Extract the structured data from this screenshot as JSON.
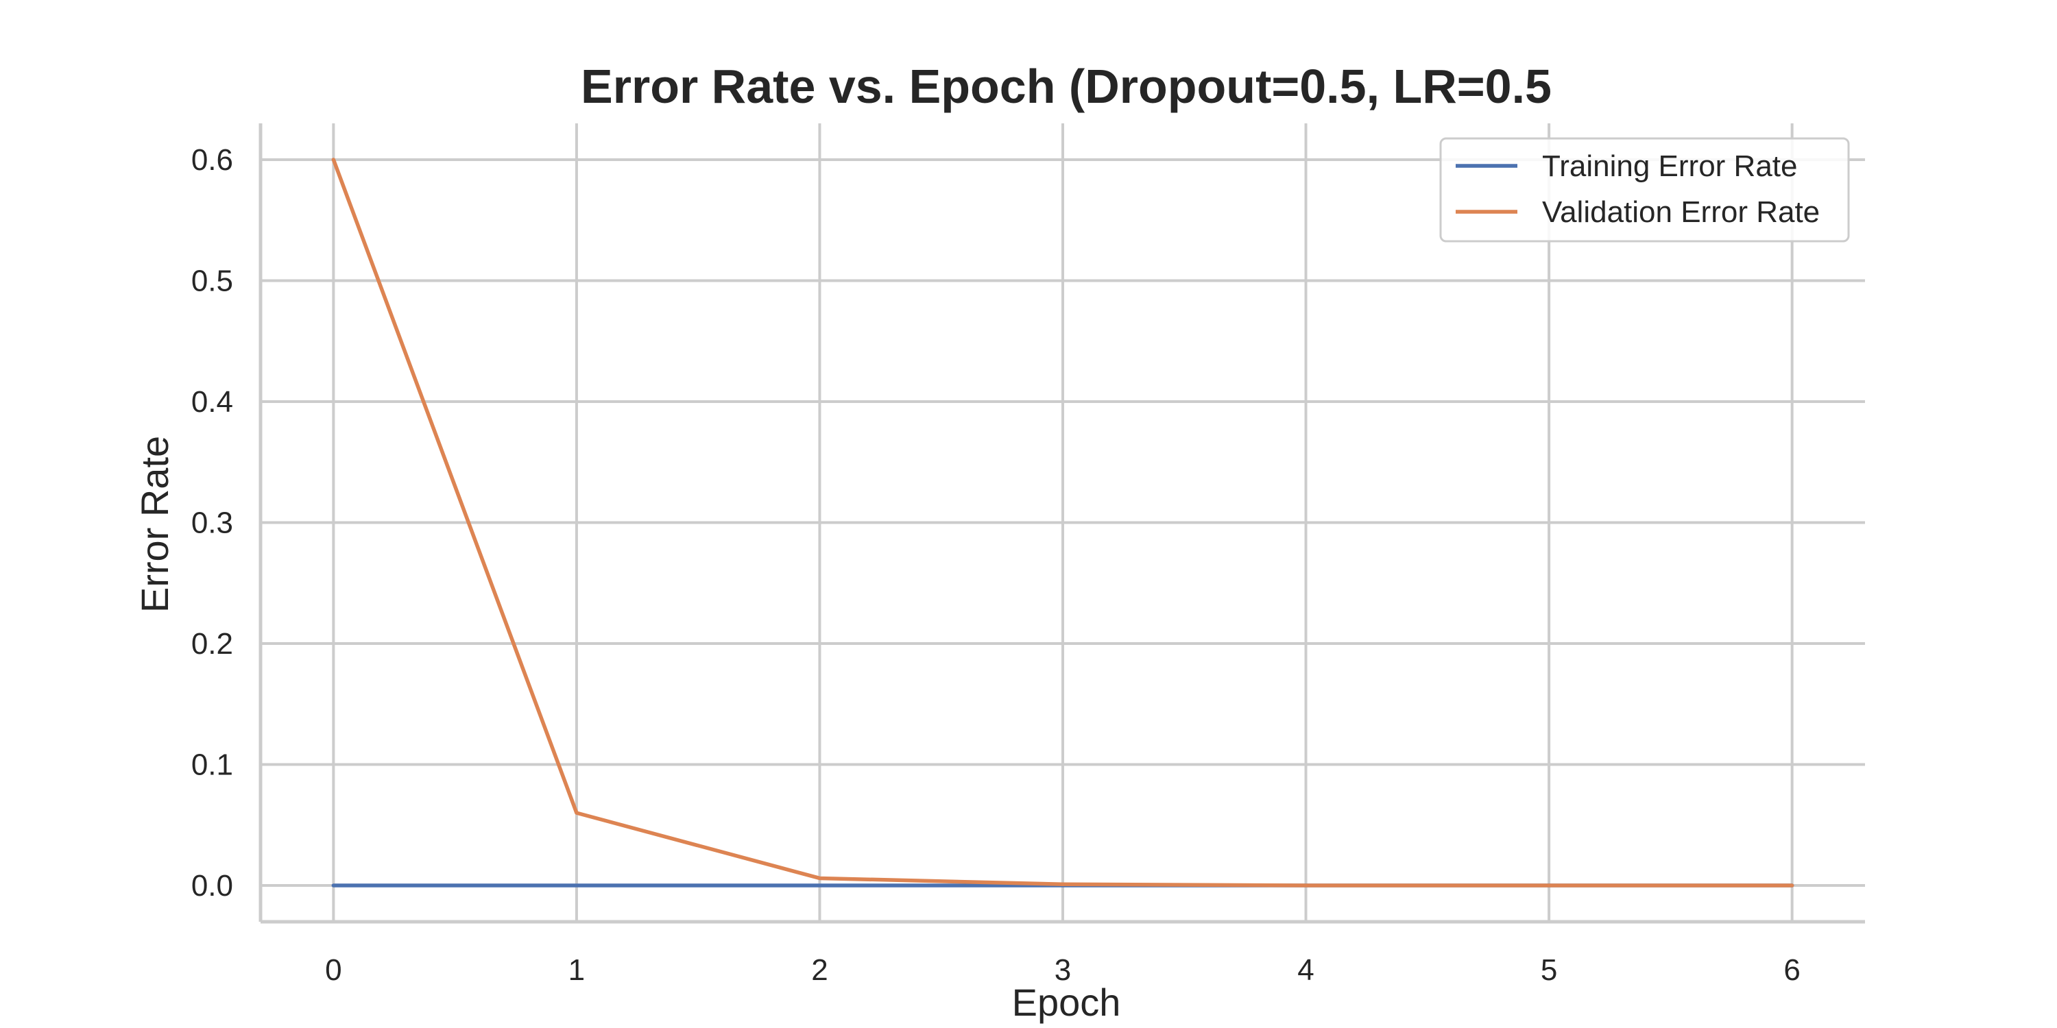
{
  "chart_data": {
    "type": "line",
    "title": "Error Rate vs. Epoch (Dropout=0.5, LR=0.5",
    "xlabel": "Epoch",
    "ylabel": "Error Rate",
    "x": [
      0,
      1,
      2,
      3,
      4,
      5,
      6
    ],
    "xticks": [
      "0",
      "1",
      "2",
      "3",
      "4",
      "5",
      "6"
    ],
    "yticks": [
      "0.0",
      "0.1",
      "0.2",
      "0.3",
      "0.4",
      "0.5",
      "0.6"
    ],
    "xlim": [
      -0.3,
      6.3
    ],
    "ylim": [
      -0.03,
      0.63
    ],
    "grid": true,
    "legend_position": "top-right",
    "series": [
      {
        "name": "Training Error Rate",
        "color": "#4C72B0",
        "values": [
          0.0,
          0.0,
          0.0,
          0.0,
          0.0,
          0.0,
          0.0
        ]
      },
      {
        "name": "Validation Error Rate",
        "color": "#DD8452",
        "values": [
          0.6,
          0.06,
          0.006,
          0.001,
          0.0,
          0.0,
          0.0
        ]
      }
    ]
  }
}
